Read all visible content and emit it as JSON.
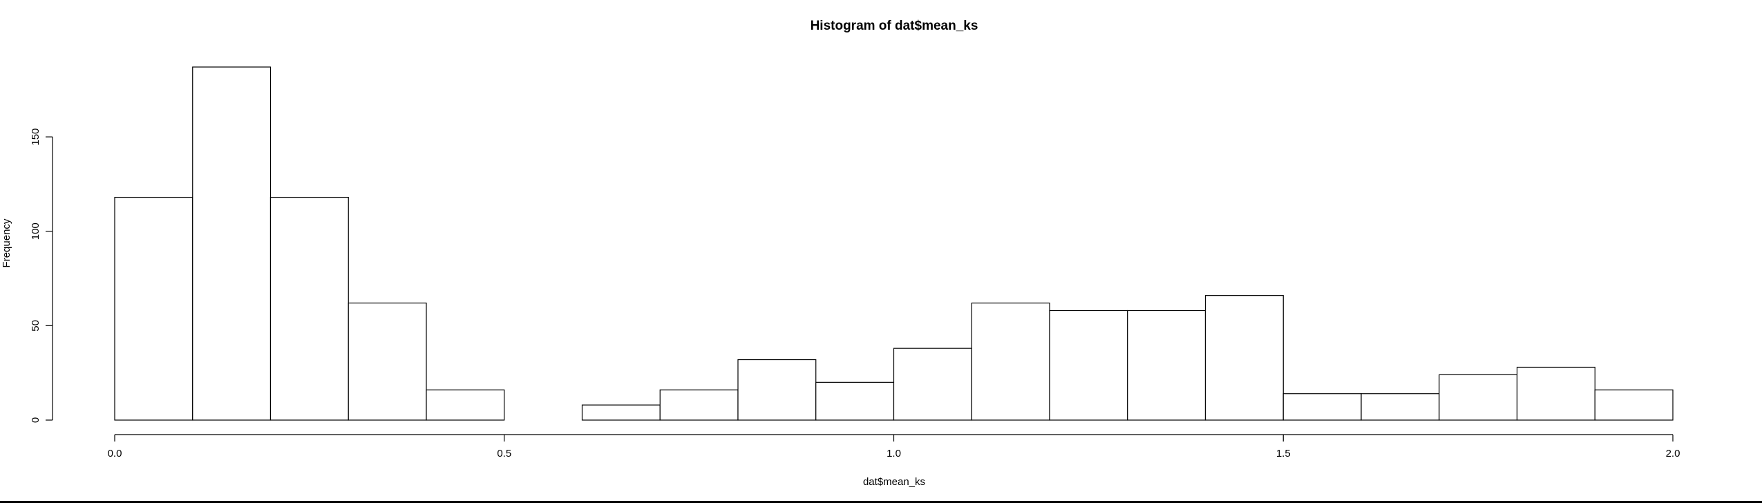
{
  "chart_data": {
    "type": "bar",
    "title": "Histogram of dat$mean_ks",
    "xlabel": "dat$mean_ks",
    "ylabel": "Frequency",
    "bin_edges": [
      0.0,
      0.1,
      0.2,
      0.3,
      0.4,
      0.5,
      0.6,
      0.7,
      0.8,
      0.9,
      1.0,
      1.1,
      1.2,
      1.3,
      1.4,
      1.5,
      1.6,
      1.7,
      1.8,
      1.9,
      2.0
    ],
    "values": [
      118,
      187,
      118,
      62,
      16,
      0,
      8,
      16,
      32,
      20,
      38,
      62,
      58,
      58,
      66,
      14,
      14,
      24,
      28,
      16
    ],
    "xlim": [
      0,
      2
    ],
    "ylim": [
      0,
      187
    ],
    "x_ticks": [
      0.0,
      0.5,
      1.0,
      1.5,
      2.0
    ],
    "x_tick_labels": [
      "0.0",
      "0.5",
      "1.0",
      "1.5",
      "2.0"
    ],
    "y_ticks": [
      0,
      50,
      100,
      150
    ],
    "y_tick_labels": [
      "0",
      "50",
      "100",
      "150"
    ],
    "grid": false,
    "legend": "none",
    "bar_fill": "#ffffff",
    "bar_stroke": "#000000"
  }
}
